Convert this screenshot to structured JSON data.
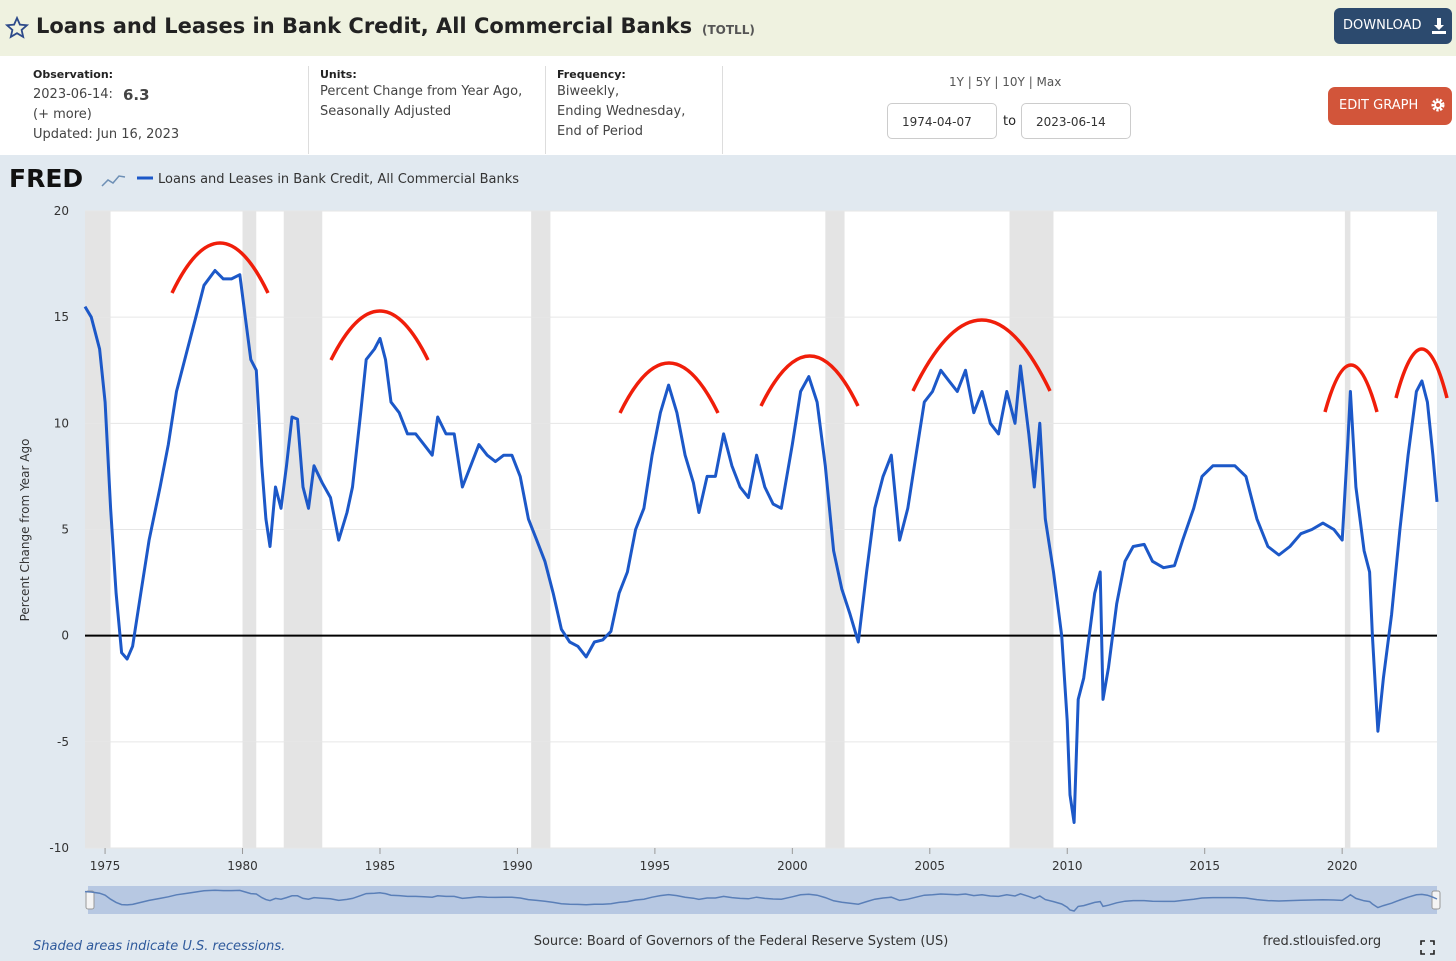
{
  "header": {
    "title": "Loans and Leases in Bank Credit, All Commercial Banks",
    "code": "(TOTLL)",
    "download": "DOWNLOAD"
  },
  "info": {
    "observation_label": "Observation:",
    "observation_date": "2023-06-14:",
    "observation_value": "6.3",
    "more": "(+ more)",
    "updated": "Updated: Jun 16, 2023",
    "units_label": "Units:",
    "units_lines": [
      "Percent Change from Year Ago,",
      "Seasonally Adjusted"
    ],
    "frequency_label": "Frequency:",
    "frequency_lines": [
      "Biweekly,",
      "Ending Wednesday,",
      "End of Period"
    ]
  },
  "controls": {
    "ranges": "1Y | 5Y | 10Y | Max",
    "start": "1974-04-07",
    "to": "to",
    "end": "2023-06-14",
    "edit": "EDIT GRAPH"
  },
  "chart_data": {
    "type": "line",
    "logo": "FRED",
    "ylabel": "Percent Change from Year Ago",
    "x": [
      1974.27,
      1974.5,
      1974.8,
      1975.0,
      1975.2,
      1975.4,
      1975.6,
      1975.8,
      1976.0,
      1976.3,
      1976.6,
      1977.0,
      1977.3,
      1977.6,
      1978.0,
      1978.3,
      1978.6,
      1979.0,
      1979.3,
      1979.6,
      1979.9,
      1980.1,
      1980.3,
      1980.5,
      1980.7,
      1980.85,
      1981.0,
      1981.2,
      1981.4,
      1981.6,
      1981.8,
      1982.0,
      1982.2,
      1982.4,
      1982.6,
      1982.9,
      1983.2,
      1983.5,
      1983.8,
      1984.0,
      1984.3,
      1984.5,
      1984.8,
      1985.0,
      1985.2,
      1985.4,
      1985.7,
      1986.0,
      1986.3,
      1986.6,
      1986.9,
      1987.1,
      1987.4,
      1987.7,
      1988.0,
      1988.3,
      1988.6,
      1988.9,
      1989.2,
      1989.5,
      1989.8,
      1990.1,
      1990.4,
      1990.7,
      1991.0,
      1991.3,
      1991.6,
      1991.9,
      1992.2,
      1992.5,
      1992.8,
      1993.1,
      1993.4,
      1993.7,
      1994.0,
      1994.3,
      1994.6,
      1994.9,
      1995.2,
      1995.5,
      1995.8,
      1996.1,
      1996.4,
      1996.6,
      1996.9,
      1997.2,
      1997.5,
      1997.8,
      1998.1,
      1998.4,
      1998.7,
      1999.0,
      1999.3,
      1999.6,
      2000.0,
      2000.3,
      2000.6,
      2000.9,
      2001.2,
      2001.5,
      2001.8,
      2002.1,
      2002.4,
      2002.7,
      2003.0,
      2003.3,
      2003.6,
      2003.9,
      2004.2,
      2004.5,
      2004.8,
      2005.1,
      2005.4,
      2005.7,
      2006.0,
      2006.3,
      2006.6,
      2006.9,
      2007.2,
      2007.5,
      2007.8,
      2008.1,
      2008.3,
      2008.6,
      2008.8,
      2009.0,
      2009.2,
      2009.5,
      2009.8,
      2010.0,
      2010.1,
      2010.25,
      2010.4,
      2010.6,
      2010.8,
      2011.0,
      2011.2,
      2011.3,
      2011.5,
      2011.8,
      2012.1,
      2012.4,
      2012.8,
      2013.1,
      2013.5,
      2013.9,
      2014.2,
      2014.6,
      2014.9,
      2015.3,
      2015.7,
      2016.1,
      2016.5,
      2016.9,
      2017.3,
      2017.7,
      2018.1,
      2018.5,
      2018.9,
      2019.3,
      2019.7,
      2020.0,
      2020.2,
      2020.3,
      2020.5,
      2020.8,
      2021.0,
      2021.1,
      2021.3,
      2021.5,
      2021.8,
      2022.1,
      2022.4,
      2022.7,
      2022.9,
      2023.1,
      2023.3,
      2023.45
    ],
    "series": [
      {
        "name": "Loans and Leases in Bank Credit, All Commercial Banks",
        "color": "#1c58c8",
        "values": [
          15.5,
          15,
          13.5,
          11,
          6,
          2,
          -0.8,
          -1.1,
          -0.5,
          2,
          4.5,
          7,
          9,
          11.5,
          13.5,
          15,
          16.5,
          17.2,
          16.8,
          16.8,
          17,
          15,
          13,
          12.5,
          8,
          5.5,
          4.2,
          7,
          6,
          8,
          10.3,
          10.2,
          7,
          6,
          8,
          7.2,
          6.5,
          4.5,
          5.8,
          7,
          10.5,
          13,
          13.5,
          14,
          13,
          11,
          10.5,
          9.5,
          9.5,
          9,
          8.5,
          10.3,
          9.5,
          9.5,
          7,
          8,
          9,
          8.5,
          8.2,
          8.5,
          8.5,
          7.5,
          5.5,
          4.5,
          3.5,
          2,
          0.3,
          -0.3,
          -0.5,
          -1,
          -0.3,
          -0.2,
          0.2,
          2,
          3,
          5,
          6,
          8.5,
          10.5,
          11.8,
          10.5,
          8.5,
          7.2,
          5.8,
          7.5,
          7.5,
          9.5,
          8,
          7,
          6.5,
          8.5,
          7,
          6.2,
          6,
          9,
          11.5,
          12.2,
          11,
          8,
          4,
          2.2,
          1,
          -0.3,
          3,
          6,
          7.5,
          8.5,
          4.5,
          6,
          8.5,
          11,
          11.5,
          12.5,
          12,
          11.5,
          12.5,
          10.5,
          11.5,
          10,
          9.5,
          11.5,
          10,
          12.7,
          9.5,
          7,
          10,
          5.5,
          3,
          0,
          -4,
          -7.5,
          -8.8,
          -3,
          -2,
          0,
          2,
          3,
          -3,
          -1.5,
          1.5,
          3.5,
          4.2,
          4.3,
          3.5,
          3.2,
          3.3,
          4.5,
          6,
          7.5,
          8,
          8,
          8,
          7.5,
          5.5,
          4.2,
          3.8,
          4.2,
          4.8,
          5,
          5.3,
          5,
          4.5,
          9,
          11.5,
          7,
          4,
          3,
          0,
          -4.5,
          -2,
          1,
          5,
          8.5,
          11.5,
          12,
          11,
          8.5,
          6.3
        ]
      }
    ],
    "xlim": [
      1974.27,
      2023.45
    ],
    "xticks": [
      1975,
      1980,
      1985,
      1990,
      1995,
      2000,
      2005,
      2010,
      2015,
      2020
    ],
    "ylim": [
      -10,
      20
    ],
    "yticks": [
      -10,
      -5,
      0,
      5,
      10,
      15,
      20
    ],
    "grid": true,
    "recessions": [
      [
        1973.9,
        1975.2
      ],
      [
        1980.0,
        1980.5
      ],
      [
        1981.5,
        1982.9
      ],
      [
        1990.5,
        1991.2
      ],
      [
        2001.2,
        2001.9
      ],
      [
        2007.9,
        2009.5
      ],
      [
        2020.1,
        2020.3
      ]
    ],
    "recession_color": "#e4e4e4"
  },
  "footer": {
    "note": "Shaded areas indicate U.S. recessions.",
    "source": "Source: Board of Governors of the Federal Reserve System (US)",
    "site": "fred.stlouisfed.org"
  }
}
